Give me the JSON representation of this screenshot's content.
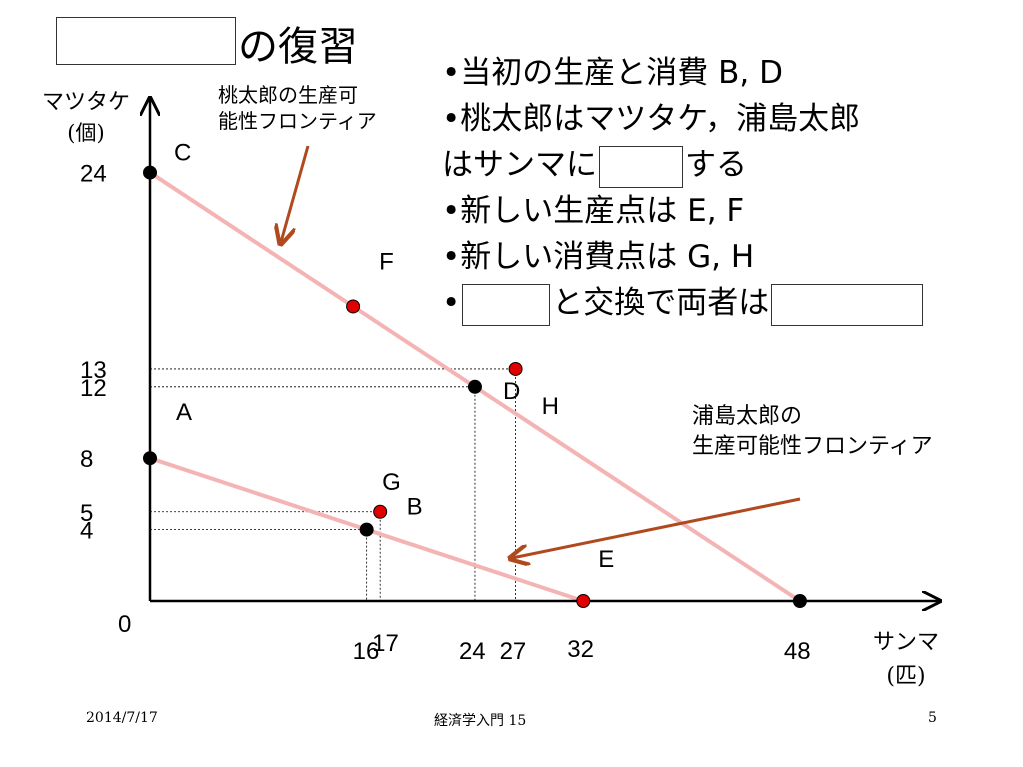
{
  "slide": {
    "title_suffix": "の復習",
    "bullets": [
      "•当初の生産と消費 B, D",
      "•桃太郎はマツタケ，浦島太郎",
      "はサンマに",
      "する",
      "•新しい生産点は E, F",
      "•新しい消費点は G, H",
      "•",
      "と交換で両者は"
    ],
    "momotaro_ppf_label": [
      "桃太郎の生産可",
      "能性フロンティア"
    ],
    "urashima_ppf_label": [
      "浦島太郎の",
      "生産可能性フロンティア"
    ],
    "footer": {
      "date": "2014/7/17",
      "course": "経済学入門 15",
      "page": "5"
    }
  },
  "colors": {
    "frontier": "#f4b4b4",
    "red_point": "#e00000",
    "black_point": "#000000",
    "arrow": "#b04a1e"
  },
  "chart_data": {
    "type": "line",
    "y_axis_label": [
      "マツタケ",
      "(個)"
    ],
    "x_axis_label": [
      "サンマ",
      "(匹)"
    ],
    "xlim": [
      0,
      52
    ],
    "ylim": [
      0,
      28
    ],
    "origin_label": "0",
    "x_ticks": [
      "16",
      "17",
      "24",
      "27",
      "32",
      "48"
    ],
    "y_ticks": [
      "24",
      "13",
      "12",
      "8",
      "5",
      "4"
    ],
    "series": [
      {
        "name": "桃太郎",
        "x": [
          0,
          48
        ],
        "y": [
          24,
          0
        ]
      },
      {
        "name": "浦島太郎",
        "x": [
          0,
          32
        ],
        "y": [
          8,
          0
        ]
      }
    ],
    "points": [
      {
        "label": "C",
        "x": 0,
        "y": 24,
        "color": "black"
      },
      {
        "label": "F",
        "x": 15,
        "y": 16.5,
        "color": "red"
      },
      {
        "label": "H",
        "x": 27,
        "y": 13,
        "color": "red"
      },
      {
        "label": "D",
        "x": 24,
        "y": 12,
        "color": "black"
      },
      {
        "label": "A",
        "x": 0,
        "y": 8,
        "color": "black"
      },
      {
        "label": "G",
        "x": 17,
        "y": 5,
        "color": "red"
      },
      {
        "label": "B",
        "x": 16,
        "y": 4,
        "color": "black"
      },
      {
        "label": "E",
        "x": 32,
        "y": 0,
        "color": "red"
      },
      {
        "label": "",
        "x": 48,
        "y": 0,
        "color": "black"
      }
    ],
    "guides": [
      {
        "x": 27,
        "y": 13
      },
      {
        "x": 24,
        "y": 12
      },
      {
        "x": 17,
        "y": 5
      },
      {
        "x": 16,
        "y": 4
      }
    ]
  }
}
